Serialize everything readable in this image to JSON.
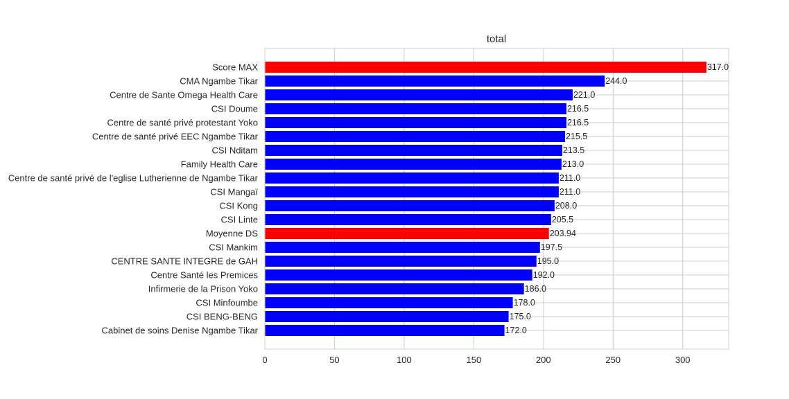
{
  "chart_data": {
    "type": "bar",
    "orientation": "horizontal",
    "title": "total",
    "xlabel": "",
    "ylabel": "",
    "xlim": [
      0,
      333
    ],
    "xticks": [
      0,
      50,
      100,
      150,
      200,
      250,
      300
    ],
    "grid": true,
    "categories": [
      "Score MAX",
      "CMA Ngambe Tikar",
      "Centre de Sante Omega Health  Care",
      "CSI Doume",
      "Centre de santé privé protestant Yoko",
      "Centre de santé privé EEC Ngambe Tikar",
      "CSI Nditam",
      "Family Health Care",
      "Centre de santé privé  de l'eglise Lutherienne de Ngambe Tikar",
      "CSI Mangaï",
      "CSI Kong",
      "CSI Linte",
      "Moyenne DS",
      "CSI Mankim",
      "CENTRE SANTE INTEGRE  de GAH",
      "Centre Santé les Premices",
      "Infirmerie de la Prison Yoko",
      "CSI Minfoumbe",
      "CSI BENG-BENG",
      "Cabinet de soins Denise Ngambe Tikar"
    ],
    "values": [
      317.0,
      244.0,
      221.0,
      216.5,
      216.5,
      215.5,
      213.5,
      213.0,
      211.0,
      211.0,
      208.0,
      205.5,
      203.94,
      197.5,
      195.0,
      192.0,
      186.0,
      178.0,
      175.0,
      172.0
    ],
    "value_labels": [
      "317.0",
      "244.0",
      "221.0",
      "216.5",
      "216.5",
      "215.5",
      "213.5",
      "213.0",
      "211.0",
      "211.0",
      "208.0",
      "205.5",
      "203.94",
      "197.5",
      "195.0",
      "192.0",
      "186.0",
      "178.0",
      "175.0",
      "172.0"
    ],
    "bar_colors": [
      "#ff0000",
      "#0000ff",
      "#0000ff",
      "#0000ff",
      "#0000ff",
      "#0000ff",
      "#0000ff",
      "#0000ff",
      "#0000ff",
      "#0000ff",
      "#0000ff",
      "#0000ff",
      "#ff0000",
      "#0000ff",
      "#0000ff",
      "#0000ff",
      "#0000ff",
      "#0000ff",
      "#0000ff",
      "#0000ff"
    ],
    "colors": {
      "highlight": "#ff0000",
      "default": "#0000ff",
      "grid": "#cccccc",
      "axes_edge": "#cccccc",
      "text": "#262626"
    }
  }
}
